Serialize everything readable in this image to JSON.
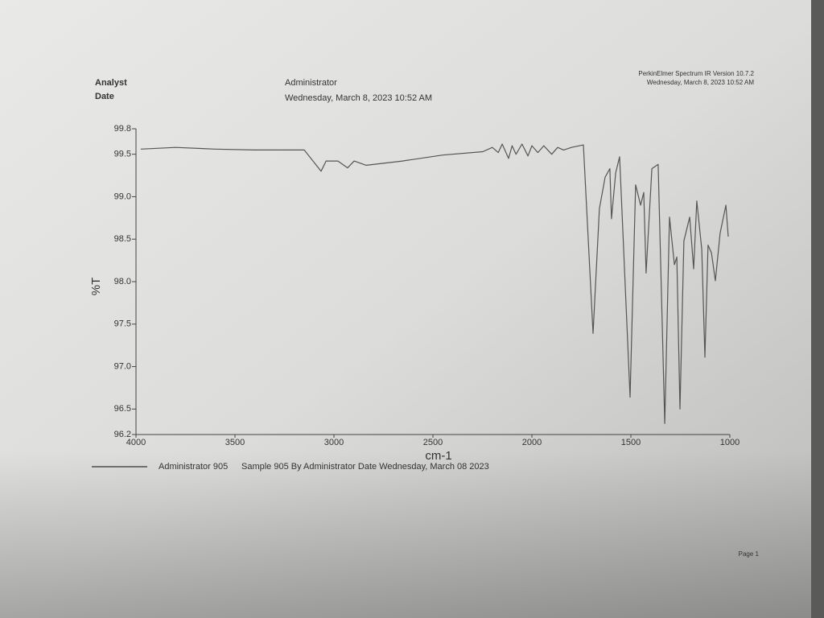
{
  "header": {
    "analyst_label": "Analyst",
    "date_label": "Date",
    "analyst": "Administrator",
    "date": "Wednesday, March 8, 2023 10:52 AM",
    "software": "PerkinElmer Spectrum IR Version 10.7.2",
    "software_date": "Wednesday, March 8, 2023 10:52 AM"
  },
  "footer": {
    "page": "Page 1"
  },
  "chart_data": {
    "type": "line",
    "x_label": "cm-1",
    "y_label": "%T",
    "xlim": [
      4000,
      1000
    ],
    "ylim": [
      96.2,
      99.8
    ],
    "xticks": [
      4000,
      3500,
      3000,
      2500,
      2000,
      1500,
      1000
    ],
    "yticks": [
      96.2,
      96.5,
      {
        "value": 97,
        "label": "97.0"
      },
      97.5,
      {
        "value": 98,
        "label": "98.0"
      },
      98.5,
      {
        "value": 99,
        "label": "99.0"
      },
      99.5,
      99.8
    ],
    "x": [
      3976,
      3800,
      3600,
      3400,
      3150,
      3065,
      3040,
      2980,
      2931,
      2898,
      2837,
      2654,
      2451,
      2248,
      2200,
      2170,
      2150,
      2118,
      2100,
      2080,
      2050,
      2020,
      2000,
      1970,
      1940,
      1900,
      1870,
      1840,
      1800,
      1740,
      1691,
      1659,
      1630,
      1606,
      1598,
      1577,
      1557,
      1504,
      1476,
      1451,
      1435,
      1423,
      1394,
      1362,
      1329,
      1305,
      1280,
      1268,
      1252,
      1232,
      1203,
      1183,
      1167,
      1142,
      1126,
      1110,
      1093,
      1073,
      1049,
      1020,
      1008
    ],
    "series": [
      {
        "name": "Administrator 905",
        "color": "#555555",
        "values": [
          99.56,
          99.58,
          99.56,
          99.55,
          99.55,
          99.3,
          99.42,
          99.42,
          99.34,
          99.42,
          99.37,
          99.42,
          99.49,
          99.53,
          99.58,
          99.52,
          99.62,
          99.45,
          99.6,
          99.5,
          99.62,
          99.48,
          99.6,
          99.52,
          99.6,
          99.5,
          99.58,
          99.55,
          99.58,
          99.61,
          97.39,
          98.86,
          99.23,
          99.33,
          98.74,
          99.28,
          99.47,
          96.64,
          99.14,
          98.9,
          99.05,
          98.1,
          99.33,
          99.38,
          96.33,
          98.76,
          98.2,
          98.29,
          96.5,
          98.48,
          98.76,
          98.15,
          98.95,
          98.38,
          97.11,
          98.43,
          98.34,
          98.01,
          98.57,
          98.9,
          98.53
        ]
      }
    ],
    "series_note": "Sample 905 By Administrator Date Wednesday, March 08 2023"
  }
}
